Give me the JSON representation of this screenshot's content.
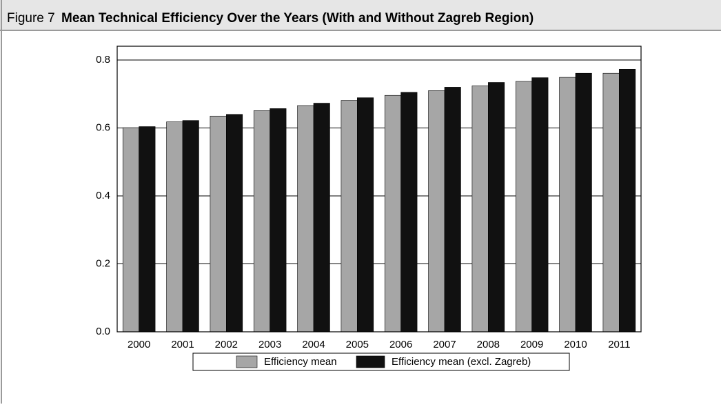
{
  "chart_data": {
    "type": "bar",
    "label": "Figure 7",
    "title": "Mean Technical Efficiency Over the Years (With and Without Zagreb Region)",
    "categories": [
      "2000",
      "2001",
      "2002",
      "2003",
      "2004",
      "2005",
      "2006",
      "2007",
      "2008",
      "2009",
      "2010",
      "2011"
    ],
    "series": [
      {
        "name": "Efficiency mean",
        "color": "#a6a6a6",
        "values": [
          0.601,
          0.618,
          0.635,
          0.651,
          0.666,
          0.681,
          0.696,
          0.71,
          0.724,
          0.737,
          0.749,
          0.761
        ]
      },
      {
        "name": "Efficiency mean (excl. Zagreb)",
        "color": "#111111",
        "values": [
          0.604,
          0.622,
          0.64,
          0.657,
          0.673,
          0.689,
          0.705,
          0.72,
          0.734,
          0.748,
          0.761,
          0.773
        ]
      }
    ],
    "ylim": [
      0,
      0.8
    ],
    "yticks": [
      {
        "value": 0,
        "label": "0.0"
      },
      0.2,
      0.4,
      0.6,
      0.8
    ],
    "grid": true,
    "legend": "bottom"
  }
}
